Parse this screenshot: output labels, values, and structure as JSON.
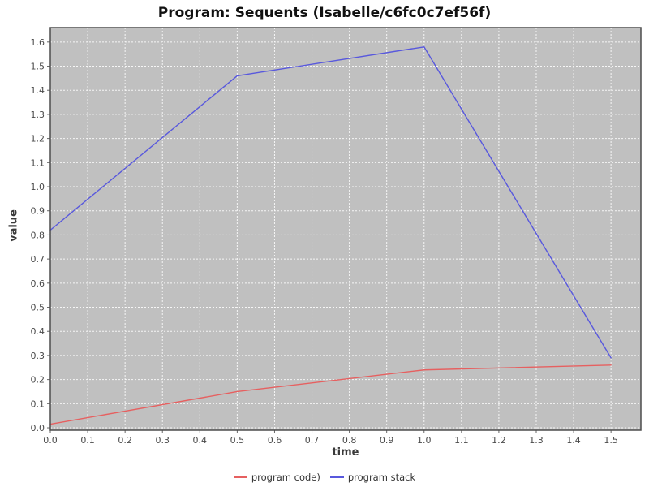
{
  "chart_data": {
    "type": "line",
    "title": "Program: Sequents (Isabelle/c6fc0c7ef56f)",
    "xlabel": "time",
    "ylabel": "value",
    "xlim": [
      0,
      1.58
    ],
    "ylim": [
      -0.01,
      1.66
    ],
    "x_ticks": [
      "0.0",
      "0.1",
      "0.2",
      "0.3",
      "0.4",
      "0.5",
      "0.6",
      "0.7",
      "0.8",
      "0.9",
      "1.0",
      "1.1",
      "1.2",
      "1.3",
      "1.4",
      "1.5"
    ],
    "y_ticks": [
      "0.0",
      "0.1",
      "0.2",
      "0.3",
      "0.4",
      "0.5",
      "0.6",
      "0.7",
      "0.8",
      "0.9",
      "1.0",
      "1.1",
      "1.2",
      "1.3",
      "1.4",
      "1.5",
      "1.6"
    ],
    "grid": "white dashed gridlines at every 0.1 on both axes",
    "legend_position": "bottom-center",
    "series": [
      {
        "name": "program code)",
        "color": "#e66060",
        "x": [
          0.0,
          0.5,
          1.0,
          1.5
        ],
        "y": [
          0.015,
          0.15,
          0.24,
          0.26
        ]
      },
      {
        "name": "program stack",
        "color": "#5858dd",
        "x": [
          0.0,
          0.5,
          1.0,
          1.5
        ],
        "y": [
          0.82,
          1.46,
          1.58,
          0.29
        ]
      }
    ],
    "colors": {
      "plot_background": "#c0c0c0",
      "gridline": "#ffffff",
      "frame": "#4d4d4d",
      "tick": "#666666",
      "tick_label": "#4a4a4a",
      "title_text": "#111111",
      "axis_title_text": "#3a3a3a",
      "page_background": "#ffffff"
    }
  }
}
